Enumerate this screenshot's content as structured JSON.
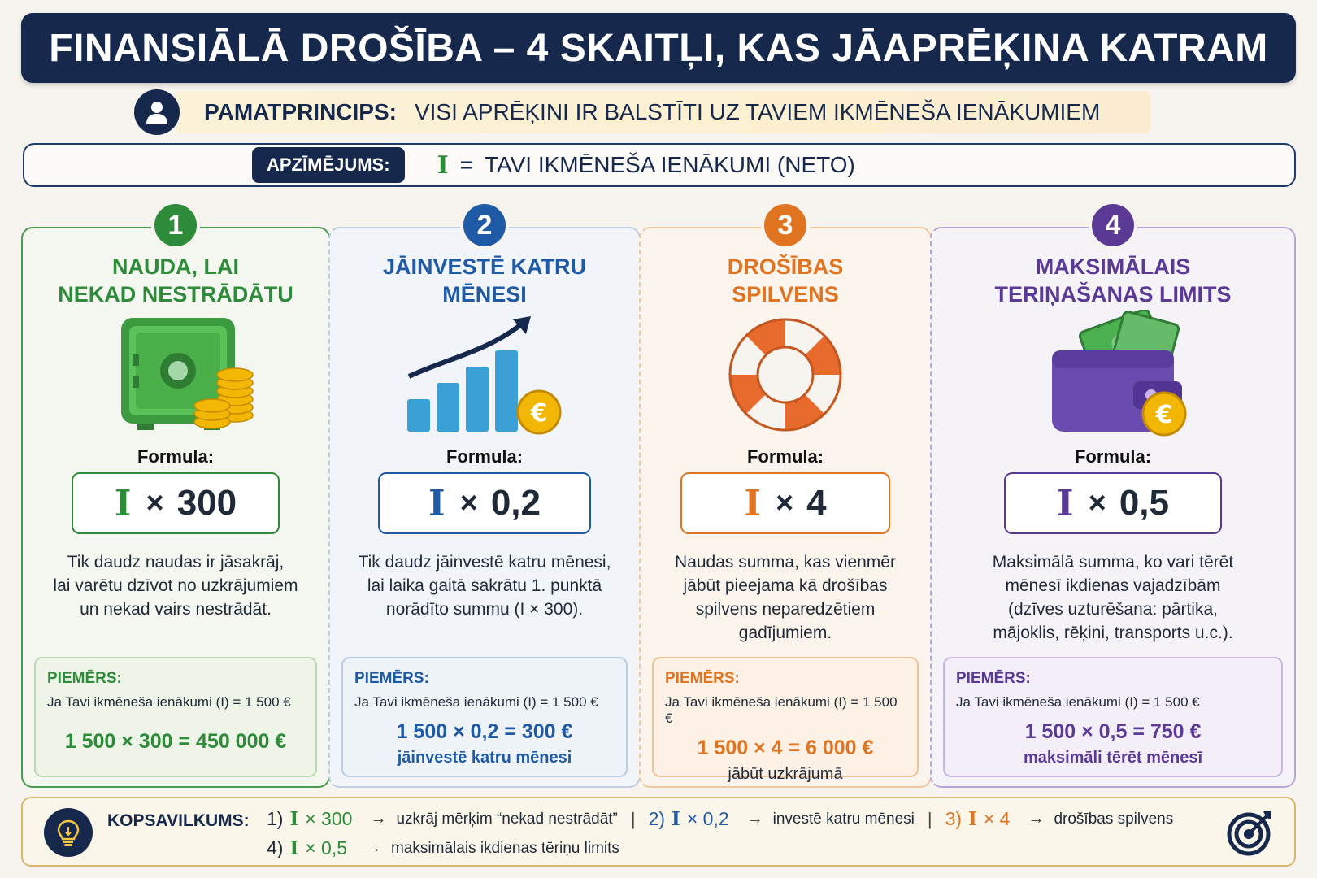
{
  "title": "FINANSIĀLĀ DROŠĪBA – 4 SKAITĻI, KAS JĀAPRĒĶINA KATRAM",
  "principle": {
    "label": "PAMATPRINCIPS:",
    "text": "VISI APRĒĶINI IR BALSTĪTI UZ TAVIEM IKMĒNEŠA IENĀKUMIEM",
    "icon": "user-icon"
  },
  "legend": {
    "tag": "APZĪMĒJUMS:",
    "symbol": "I",
    "eq": "=",
    "definition": "TAVI IKMĒNEŠA IENĀKUMI (NETO)"
  },
  "formula_label": "Formula:",
  "example_title": "PIEMĒRS:",
  "times": "×",
  "equals": "=",
  "panels": [
    {
      "number": "1",
      "heading": "NAUDA, LAI\nNEKAD NESTRĀDĀTU",
      "icon": "safe-with-coins-icon",
      "color": "#2e8b3a",
      "formula_symbol": "I",
      "formula_value": "300",
      "description": "Tik daudz naudas ir jāsakrāj,\nlai varētu dzīvot no uzkrājumiem\nun nekad vairs nestrādāt.",
      "example_line": "Ja Tavi ikmēneša ienākumi (I) = 1 500 €",
      "example_calc": "1 500 × 300 = 450 000 €",
      "example_note": ""
    },
    {
      "number": "2",
      "heading": "JĀINVESTĒ KATRU\nMĒNESI",
      "icon": "growth-chart-icon",
      "color": "#1f5aa6",
      "formula_symbol": "I",
      "formula_value": "0,2",
      "description": "Tik daudz jāinvestē katru mēnesi,\nlai laika gaitā sakrātu 1. punktā\nnorādīto summu (I × 300).",
      "example_line": "Ja Tavi ikmēneša ienākumi (I) = 1 500 €",
      "example_calc": "1 500 × 0,2 = 300 €",
      "example_note": "jāinvestē katru mēnesi"
    },
    {
      "number": "3",
      "heading": "DROŠĪBAS\nSPILVENS",
      "icon": "lifebuoy-icon",
      "color": "#e07421",
      "formula_symbol": "I",
      "formula_value": "4",
      "description": "Naudas summa, kas vienmēr\njābūt pieejama kā drošības\nspilvens neparedzētiem\ngadījumiem.",
      "example_line": "Ja Tavi ikmēneša ienākumi (I) = 1 500 €",
      "example_calc": "1 500 × 4 = 6 000 €",
      "example_note": "jābūt uzkrājumā"
    },
    {
      "number": "4",
      "heading": "MAKSIMĀLAIS\nTERIŅAŠANAS LIMITS",
      "icon": "wallet-icon",
      "color": "#5b3a96",
      "formula_symbol": "I",
      "formula_value": "0,5",
      "description": "Maksimālā summa, ko vari tērēt\nmēnesī ikdienas vajadzībām\n(dzīves uzturēšana: pārtika,\nmājoklis, rēķini, transports u.c.).",
      "example_line": "Ja Tavi ikmēneša ienākumi (I) = 1 500 €",
      "example_calc": "1 500 × 0,5 = 750 €",
      "example_note": "maksimāli tērēt mēnesī"
    }
  ],
  "summary": {
    "label": "KOPSAVILKUMS:",
    "items": [
      {
        "prefix": "1)",
        "formula": "× 300",
        "text": "uzkrāj mērķim “nekad nestrādāt”",
        "color": "#2e8b3a"
      },
      {
        "prefix": "2)",
        "formula": "× 0,2",
        "text": "investē katru mēnesi",
        "color": "#1f5aa6"
      },
      {
        "prefix": "3)",
        "formula": "× 4",
        "text": "drošības spilvens",
        "color": "#e07421"
      },
      {
        "prefix": "4)",
        "formula": "× 0,5",
        "text": "maksimālais ikdienas tēriņu limits",
        "color": "#2e8b3a"
      }
    ],
    "symbol": "I",
    "arrow": "→",
    "separator": "|",
    "icons": [
      "lightbulb-icon",
      "target-icon"
    ]
  }
}
